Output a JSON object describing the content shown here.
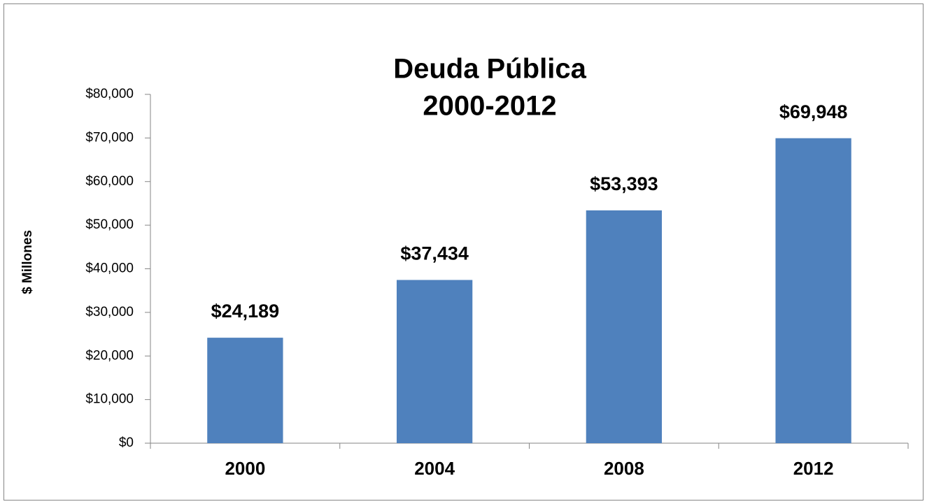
{
  "chart_data": {
    "type": "bar",
    "title": "Deuda Pública",
    "subtitle": "2000-2012",
    "y_label": "$ Millones",
    "categories": [
      "2000",
      "2004",
      "2008",
      "2012"
    ],
    "values": [
      24189,
      37434,
      53393,
      69948
    ],
    "value_labels": [
      "$24,189",
      "$37,434",
      "$53,393",
      "$69,948"
    ],
    "color": "#4f81bd",
    "ylim": [
      0,
      80000
    ],
    "yticks": [
      {
        "value": 0,
        "label": "$0"
      },
      {
        "value": 10000,
        "label": "$10,000"
      },
      {
        "value": 20000,
        "label": "$20,000"
      },
      {
        "value": 30000,
        "label": "$30,000"
      },
      {
        "value": 40000,
        "label": "$40,000"
      },
      {
        "value": 50000,
        "label": "$50,000"
      },
      {
        "value": 60000,
        "label": "$60,000"
      },
      {
        "value": 70000,
        "label": "$70,000"
      },
      {
        "value": 80000,
        "label": "$80,000"
      }
    ],
    "grid": false
  }
}
